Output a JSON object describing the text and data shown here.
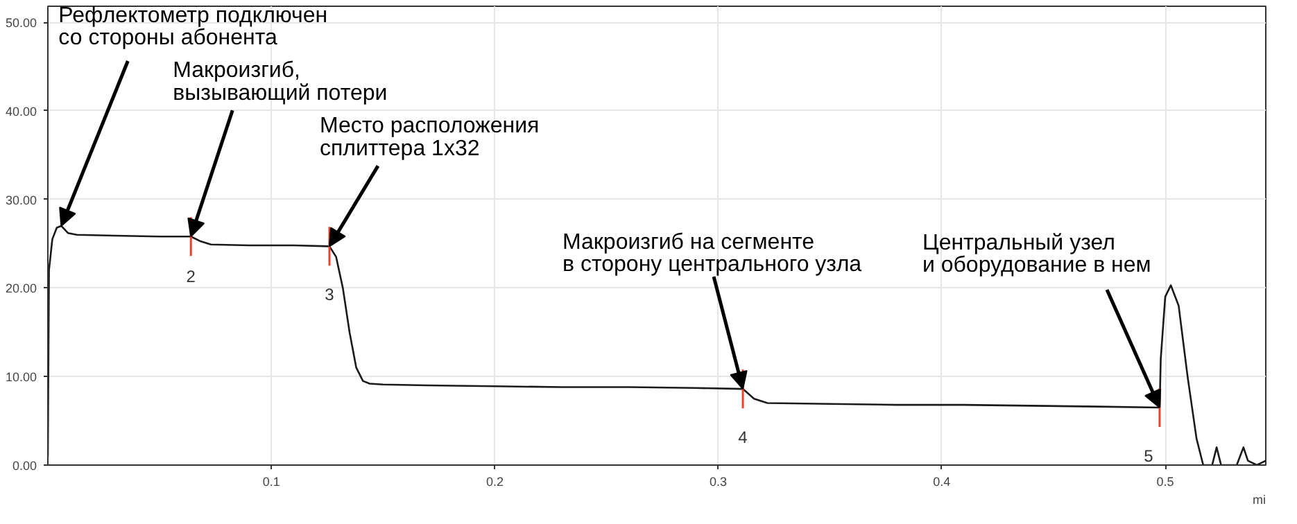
{
  "chart_data": {
    "type": "line",
    "xlabel": "mi",
    "x": [
      0,
      0.0005,
      0.002,
      0.004,
      0.006,
      0.009,
      0.013,
      0.03,
      0.05,
      0.064,
      0.068,
      0.073,
      0.09,
      0.11,
      0.126,
      0.129,
      0.132,
      0.135,
      0.138,
      0.141,
      0.144,
      0.15,
      0.17,
      0.2,
      0.23,
      0.26,
      0.29,
      0.311,
      0.316,
      0.322,
      0.35,
      0.38,
      0.41,
      0.44,
      0.47,
      0.4975,
      0.498,
      0.5,
      0.5025,
      0.506,
      0.51,
      0.514,
      0.517,
      0.521,
      0.523,
      0.525,
      0.532,
      0.535,
      0.537,
      0.541,
      0.545
    ],
    "series": [
      {
        "color": "#1a1a1a",
        "values": [
          1,
          22,
          25.5,
          26.8,
          27,
          26.2,
          26,
          25.9,
          25.8,
          25.8,
          25.3,
          24.9,
          24.8,
          24.8,
          24.7,
          23.5,
          20,
          15,
          11,
          9.5,
          9.2,
          9.1,
          9.0,
          8.9,
          8.8,
          8.8,
          8.7,
          8.6,
          7.5,
          7.0,
          6.9,
          6.8,
          6.8,
          6.7,
          6.6,
          6.5,
          12,
          19,
          20.3,
          18,
          10,
          3,
          0,
          0,
          2,
          0,
          0,
          2,
          0.5,
          0,
          0.5
        ]
      }
    ],
    "xlim": [
      0,
      0.545
    ],
    "ylim": [
      0,
      51.8
    ],
    "xticks": [
      0.1,
      0.2,
      0.3,
      0.4,
      0.5
    ],
    "yticks": [
      {
        "value": 0,
        "label": "0.00"
      },
      {
        "value": 10,
        "label": "10.00"
      },
      {
        "value": 20,
        "label": "20.00"
      },
      {
        "value": 30,
        "label": "30.00"
      },
      {
        "value": 40,
        "label": "40.00"
      },
      {
        "value": 50,
        "label": "50.00"
      }
    ],
    "grid": true,
    "legend": false,
    "marker": "none",
    "line_style": "solid",
    "ref_lines": [
      {
        "axis": "x",
        "value": 0.064,
        "color": "#e8412c"
      },
      {
        "axis": "x",
        "value": 0.126,
        "color": "#e8412c"
      },
      {
        "axis": "x",
        "value": 0.311,
        "color": "#e8412c"
      },
      {
        "axis": "x",
        "value": 0.4975,
        "color": "#e8412c"
      }
    ],
    "annotations": [
      {
        "text": "Рефлектометр подключен\nсо стороны абонента",
        "x": 0.006,
        "y": 27
      },
      {
        "text": "Макроизгиб,\nвызывающий потери",
        "x": 0.064,
        "y": 25.8
      },
      {
        "text": "Место расположения\nсплиттера 1x32",
        "x": 0.126,
        "y": 24.7
      },
      {
        "text": "Макроизгиб на сегменте\nв сторону центрального узла",
        "x": 0.311,
        "y": 8.6
      },
      {
        "text": "Центральный узел\nи оборудование в нем",
        "x": 0.4975,
        "y": 6.5
      },
      {
        "text": "2",
        "x": 0.064,
        "y": 25.8
      },
      {
        "text": "3",
        "x": 0.126,
        "y": 24.7
      },
      {
        "text": "4",
        "x": 0.311,
        "y": 8.6
      },
      {
        "text": "5",
        "x": 0.4975,
        "y": 6.5
      }
    ]
  }
}
